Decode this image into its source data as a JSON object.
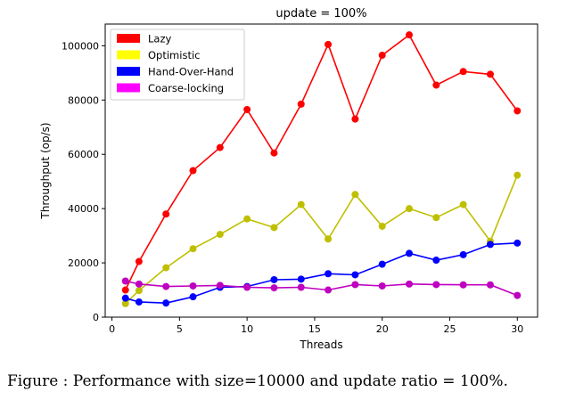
{
  "caption": "Figure   : Performance with size=10000 and update ratio = 100%.",
  "chart_data": {
    "type": "line",
    "title": "update = 100%",
    "xlabel": "Threads",
    "ylabel": "Throughput (op/s)",
    "xlim": [
      -0.5,
      31.5
    ],
    "ylim": [
      0,
      108000
    ],
    "xticks": [
      0,
      5,
      10,
      15,
      20,
      25,
      30
    ],
    "yticks": [
      0,
      20000,
      40000,
      60000,
      80000,
      100000
    ],
    "grid": false,
    "legend_position": "top-left",
    "x": [
      1,
      2,
      4,
      6,
      8,
      10,
      12,
      14,
      16,
      18,
      20,
      22,
      24,
      26,
      28,
      30
    ],
    "series": [
      {
        "name": "Lazy",
        "color": "#ff0000",
        "values": [
          10000,
          20500,
          38000,
          54000,
          62500,
          76500,
          60500,
          78500,
          100500,
          73000,
          96500,
          104000,
          85500,
          90500,
          89500,
          76000
        ]
      },
      {
        "name": "Optimistic",
        "color": "#bfbf00",
        "legend_color": "#ffff00",
        "values": [
          5000,
          9800,
          18200,
          25200,
          30500,
          36200,
          33000,
          41500,
          28800,
          45200,
          33500,
          40000,
          36700,
          41500,
          28000,
          52300
        ]
      },
      {
        "name": "Hand-Over-Hand",
        "color": "#0000ff",
        "values": [
          7000,
          5600,
          5200,
          7500,
          11000,
          11300,
          13800,
          14000,
          16000,
          15600,
          19500,
          23500,
          21000,
          23000,
          26800,
          27300
        ]
      },
      {
        "name": "Coarse-locking",
        "color": "#bf00bf",
        "legend_color": "#ff00ff",
        "values": [
          13300,
          12200,
          11300,
          11500,
          11700,
          11000,
          10800,
          11000,
          10000,
          12000,
          11500,
          12200,
          12000,
          11900,
          11900,
          8000
        ]
      }
    ]
  }
}
